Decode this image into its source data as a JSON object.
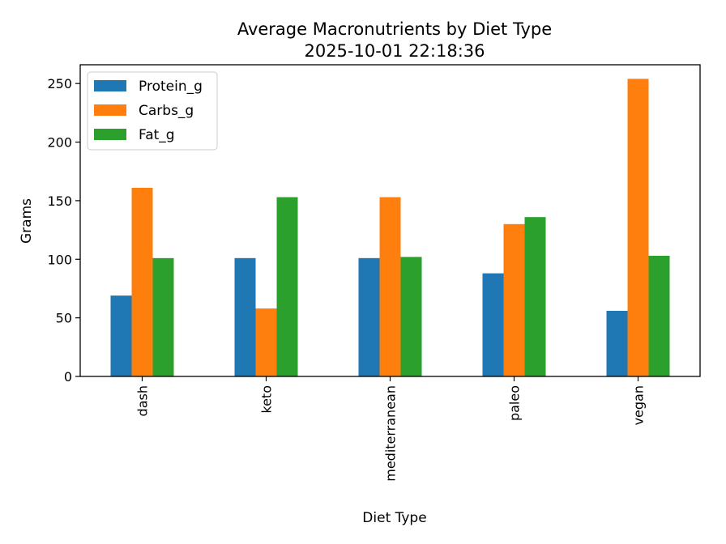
{
  "chart_data": {
    "type": "bar",
    "title": "Average Macronutrients by Diet Type",
    "subtitle": "2025-10-01 22:18:36",
    "xlabel": "Diet Type",
    "ylabel": "Grams",
    "categories": [
      "dash",
      "keto",
      "mediterranean",
      "paleo",
      "vegan"
    ],
    "series": [
      {
        "name": "Protein_g",
        "color": "#1f77b4",
        "values": [
          69,
          101,
          101,
          88,
          56
        ]
      },
      {
        "name": "Carbs_g",
        "color": "#ff7f0e",
        "values": [
          161,
          58,
          153,
          130,
          254
        ]
      },
      {
        "name": "Fat_g",
        "color": "#2ca02c",
        "values": [
          101,
          153,
          102,
          136,
          103
        ]
      }
    ],
    "ylim": [
      0,
      266
    ],
    "yticks": [
      0,
      50,
      100,
      150,
      200,
      250
    ],
    "legend": "upper-left",
    "grid": false
  }
}
